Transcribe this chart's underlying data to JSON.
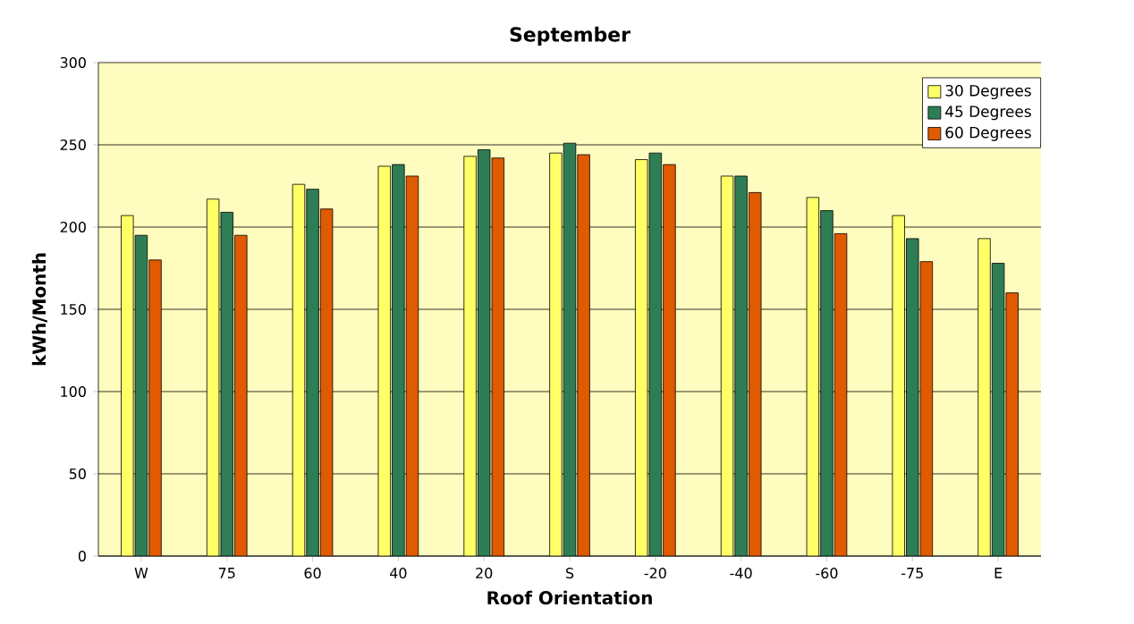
{
  "chart_data": {
    "type": "bar",
    "title": "September",
    "xlabel": "Roof Orientation",
    "ylabel": "kWh/Month",
    "categories": [
      "W",
      "75",
      "60",
      "40",
      "20",
      "S",
      "-20",
      "-40",
      "-60",
      "-75",
      "E"
    ],
    "series": [
      {
        "name": "30 Degrees",
        "color": "#ffff66",
        "values": [
          207,
          217,
          226,
          237,
          243,
          245,
          241,
          231,
          218,
          207,
          193
        ]
      },
      {
        "name": "45 Degrees",
        "color": "#2e7d55",
        "values": [
          195,
          209,
          223,
          238,
          247,
          251,
          245,
          231,
          210,
          193,
          178
        ]
      },
      {
        "name": "60 Degrees",
        "color": "#e05a00",
        "values": [
          180,
          195,
          211,
          231,
          242,
          244,
          238,
          221,
          196,
          179,
          160
        ]
      }
    ],
    "ylim": [
      0,
      300
    ],
    "yticks": [
      0,
      50,
      100,
      150,
      200,
      250,
      300
    ],
    "grid": "y",
    "legend": "top right"
  }
}
